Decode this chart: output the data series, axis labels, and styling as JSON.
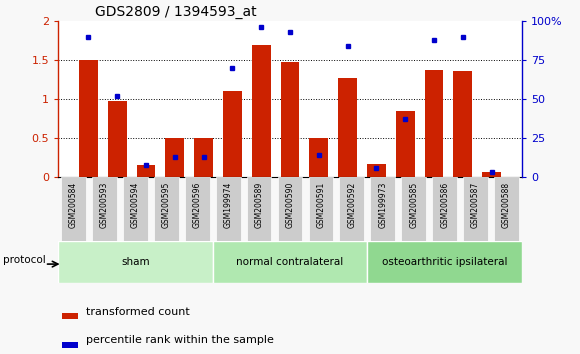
{
  "title": "GDS2809 / 1394593_at",
  "samples": [
    "GSM200584",
    "GSM200593",
    "GSM200594",
    "GSM200595",
    "GSM200596",
    "GSM199974",
    "GSM200589",
    "GSM200590",
    "GSM200591",
    "GSM200592",
    "GSM199973",
    "GSM200585",
    "GSM200586",
    "GSM200587",
    "GSM200588"
  ],
  "red_values": [
    1.5,
    0.97,
    0.15,
    0.5,
    0.5,
    1.1,
    1.7,
    1.48,
    0.5,
    1.27,
    0.17,
    0.85,
    1.37,
    1.36,
    0.07
  ],
  "blue_values": [
    90,
    52,
    8,
    13,
    13,
    70,
    96,
    93,
    14,
    84,
    6,
    37,
    88,
    90,
    3
  ],
  "groups": [
    {
      "label": "sham",
      "start": 0,
      "end": 5
    },
    {
      "label": "normal contralateral",
      "start": 5,
      "end": 10
    },
    {
      "label": "osteoarthritic ipsilateral",
      "start": 10,
      "end": 15
    }
  ],
  "group_colors": [
    "#c8f0c8",
    "#b0e8b0",
    "#90d890"
  ],
  "left_ylim": [
    0,
    2
  ],
  "right_ylim": [
    0,
    100
  ],
  "left_yticks": [
    0,
    0.5,
    1.0,
    1.5,
    2.0
  ],
  "right_yticks": [
    0,
    25,
    50,
    75,
    100
  ],
  "right_yticklabels": [
    "0",
    "25",
    "50",
    "75",
    "100%"
  ],
  "bar_color": "#cc2200",
  "dot_color": "#0000cc",
  "legend_items": [
    "transformed count",
    "percentile rank within the sample"
  ],
  "protocol_label": "protocol",
  "tick_label_bg": "#cccccc",
  "fig_bg": "#f8f8f8"
}
